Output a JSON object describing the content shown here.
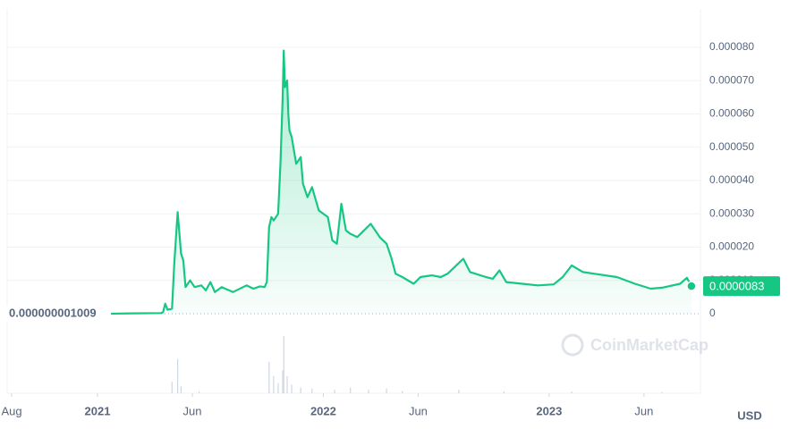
{
  "chart_data": {
    "type": "line",
    "color": "#16c784",
    "currency": "USD",
    "watermark": "CoinMarketCap",
    "xlim": [
      2020.6,
      2023.67
    ],
    "ylim": [
      0,
      9.15e-05
    ],
    "xticks": [
      {
        "value": 2020.62,
        "label": "Aug"
      },
      {
        "value": 2021,
        "label": "2021"
      },
      {
        "value": 2021.42,
        "label": "Jun"
      },
      {
        "value": 2022,
        "label": "2022"
      },
      {
        "value": 2022.42,
        "label": "Jun"
      },
      {
        "value": 2023,
        "label": "2023"
      },
      {
        "value": 2023.42,
        "label": "Jun"
      }
    ],
    "yticks": [
      0,
      {
        "value": 1e-05,
        "label": "0.000010"
      },
      {
        "value": 2e-05,
        "label": "0.000020"
      },
      {
        "value": 3e-05,
        "label": "0.000030"
      },
      {
        "value": 4e-05,
        "label": "0.000040"
      },
      {
        "value": 5e-05,
        "label": "0.000050"
      },
      {
        "value": 6e-05,
        "label": "0.000060"
      },
      {
        "value": 7e-05,
        "label": "0.000070"
      },
      {
        "value": 8e-05,
        "label": "0.000080"
      }
    ],
    "grid": true,
    "annotations": [
      {
        "value": 1.009e-09,
        "label": "0.000000001009"
      },
      {
        "value": 8.3e-06,
        "label": "0.0000083"
      }
    ],
    "series": [
      {
        "name": "Price",
        "x": [
          2021.06,
          2021.15,
          2021.28,
          2021.29,
          2021.3,
          2021.31,
          2021.33,
          2021.34,
          2021.355,
          2021.37,
          2021.38,
          2021.39,
          2021.41,
          2021.43,
          2021.46,
          2021.48,
          2021.5,
          2021.52,
          2021.55,
          2021.6,
          2021.66,
          2021.69,
          2021.72,
          2021.74,
          2021.75,
          2021.76,
          2021.77,
          2021.78,
          2021.8,
          2021.81,
          2021.82,
          2021.825,
          2021.83,
          2021.84,
          2021.845,
          2021.85,
          2021.86,
          2021.88,
          2021.9,
          2021.91,
          2021.93,
          2021.95,
          2021.98,
          2022.02,
          2022.04,
          2022.06,
          2022.08,
          2022.1,
          2022.12,
          2022.15,
          2022.18,
          2022.21,
          2022.25,
          2022.28,
          2022.3,
          2022.32,
          2022.35,
          2022.4,
          2022.43,
          2022.48,
          2022.52,
          2022.55,
          2022.62,
          2022.65,
          2022.72,
          2022.75,
          2022.78,
          2022.81,
          2022.88,
          2022.95,
          2023.02,
          2023.06,
          2023.1,
          2023.15,
          2023.2,
          2023.3,
          2023.38,
          2023.45,
          2023.5,
          2023.58,
          2023.61,
          2023.63
        ],
        "values": [
          1.009e-09,
          1e-07,
          2e-07,
          4e-07,
          3e-06,
          1.2e-06,
          1.5e-06,
          1.5e-05,
          3.05e-05,
          1.8e-05,
          1.6e-05,
          8e-06,
          1e-05,
          8e-06,
          8.5e-06,
          7e-06,
          9.5e-06,
          6.5e-06,
          8e-06,
          6.5e-06,
          8.5e-06,
          7.5e-06,
          8.2e-06,
          8e-06,
          9.5e-06,
          2.6e-05,
          2.9e-05,
          2.8e-05,
          3e-05,
          4.5e-05,
          6.5e-05,
          7.9e-05,
          6.8e-05,
          7e-05,
          6e-05,
          5.5e-05,
          5.3e-05,
          4.5e-05,
          4.7e-05,
          3.9e-05,
          3.5e-05,
          3.8e-05,
          3.1e-05,
          2.9e-05,
          2.2e-05,
          2.1e-05,
          3.3e-05,
          2.5e-05,
          2.4e-05,
          2.3e-05,
          2.5e-05,
          2.7e-05,
          2.3e-05,
          2.1e-05,
          1.7e-05,
          1.2e-05,
          1.1e-05,
          9e-06,
          1.1e-05,
          1.15e-05,
          1.1e-05,
          1.2e-05,
          1.65e-05,
          1.25e-05,
          1.1e-05,
          1.05e-05,
          1.3e-05,
          9.5e-06,
          9e-06,
          8.5e-06,
          8.8e-06,
          1.1e-05,
          1.45e-05,
          1.25e-05,
          1.2e-05,
          1.1e-05,
          9e-06,
          7.5e-06,
          7.8e-06,
          9e-06,
          1.08e-05,
          8.3e-06
        ]
      }
    ],
    "volume": {
      "x": [
        2021.33,
        2021.355,
        2021.37,
        2021.45,
        2021.76,
        2021.78,
        2021.8,
        2021.82,
        2021.825,
        2021.84,
        2021.86,
        2021.9,
        2021.95,
        2022.05,
        2022.12,
        2022.2,
        2022.28,
        2022.35,
        2022.6,
        2022.8,
        2023.1,
        2023.5
      ],
      "values": [
        20,
        60,
        12,
        3,
        55,
        30,
        18,
        40,
        100,
        30,
        15,
        10,
        8,
        6,
        10,
        6,
        8,
        4,
        6,
        3,
        3,
        2
      ]
    }
  }
}
